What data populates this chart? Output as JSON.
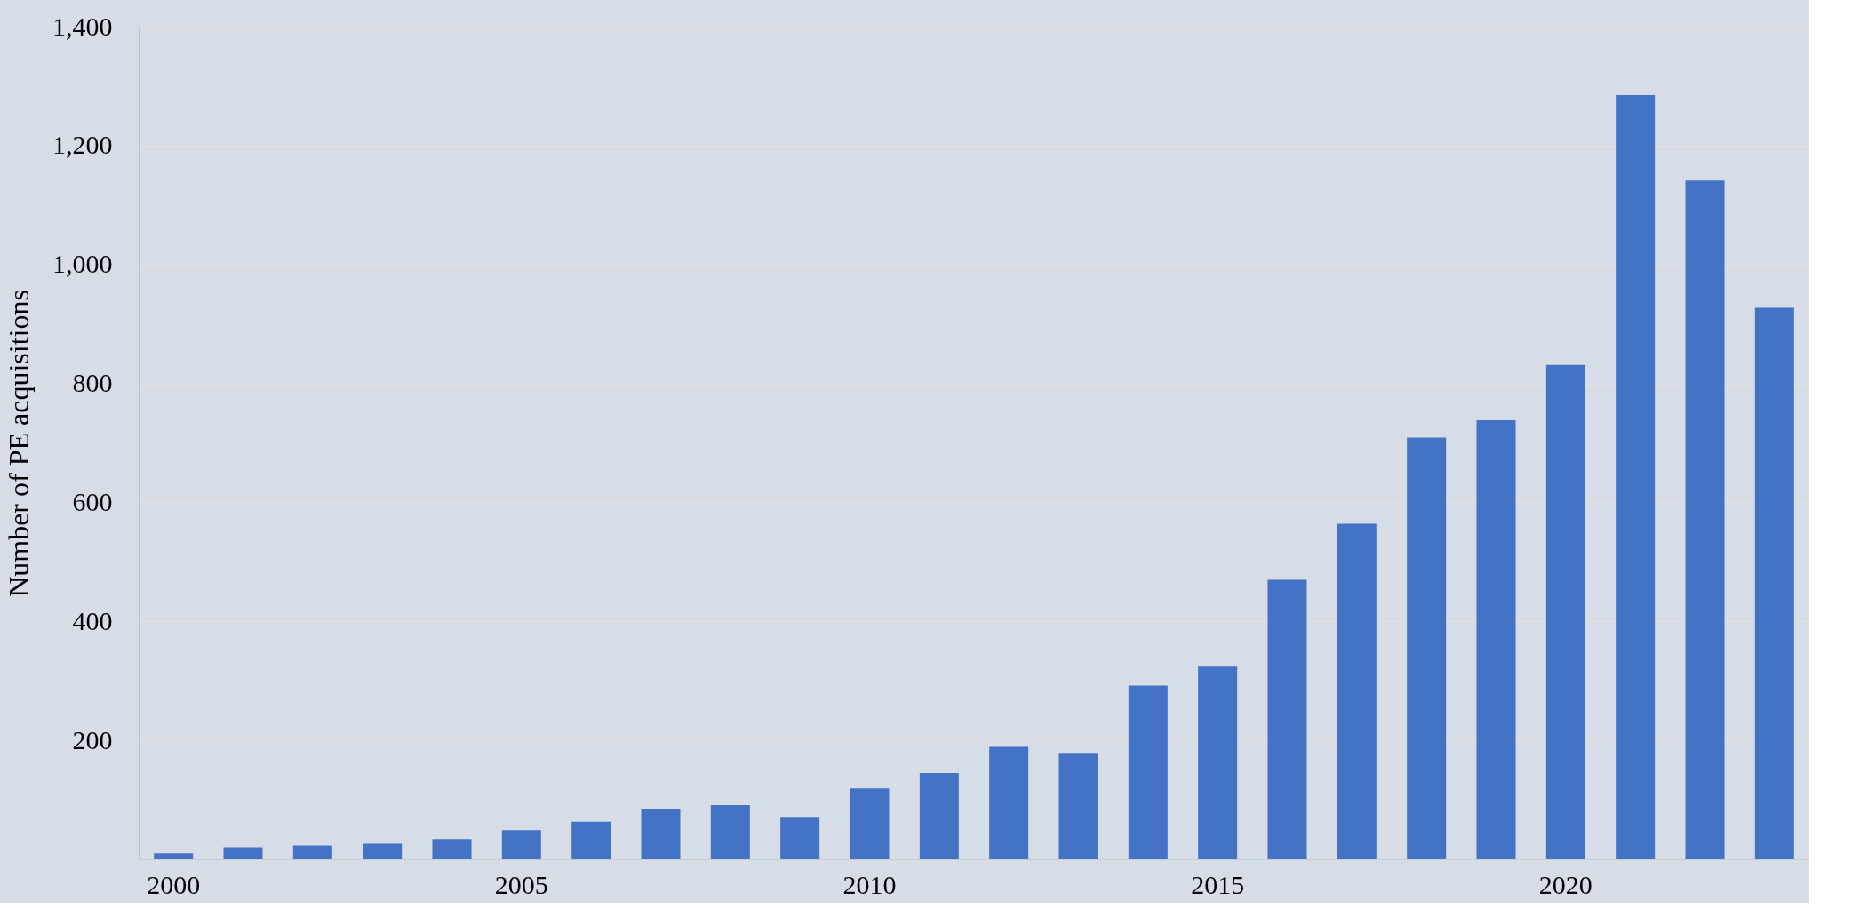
{
  "chart_data": {
    "type": "bar",
    "ylabel": "Number of PE acquisitions",
    "categories": [
      "2000",
      null,
      null,
      null,
      null,
      "2005",
      null,
      null,
      null,
      null,
      "2010",
      null,
      null,
      null,
      null,
      "2015",
      null,
      null,
      null,
      null,
      "2020",
      null,
      null,
      null
    ],
    "series": [
      {
        "color": "#4472c4",
        "values": [
          10,
          20,
          23,
          26,
          34,
          49,
          63,
          85,
          91,
          70,
          119,
          145,
          189,
          179,
          292,
          324,
          470,
          564,
          709,
          738,
          831,
          1285,
          1141,
          927
        ]
      }
    ],
    "ylim": [
      0,
      1400
    ],
    "yticks": [
      200,
      400,
      600,
      800,
      {
        "value": 1000,
        "label": "1,000"
      },
      {
        "value": 1200,
        "label": "1,200"
      },
      {
        "value": 1400,
        "label": "1,400"
      }
    ],
    "grid": "y"
  }
}
